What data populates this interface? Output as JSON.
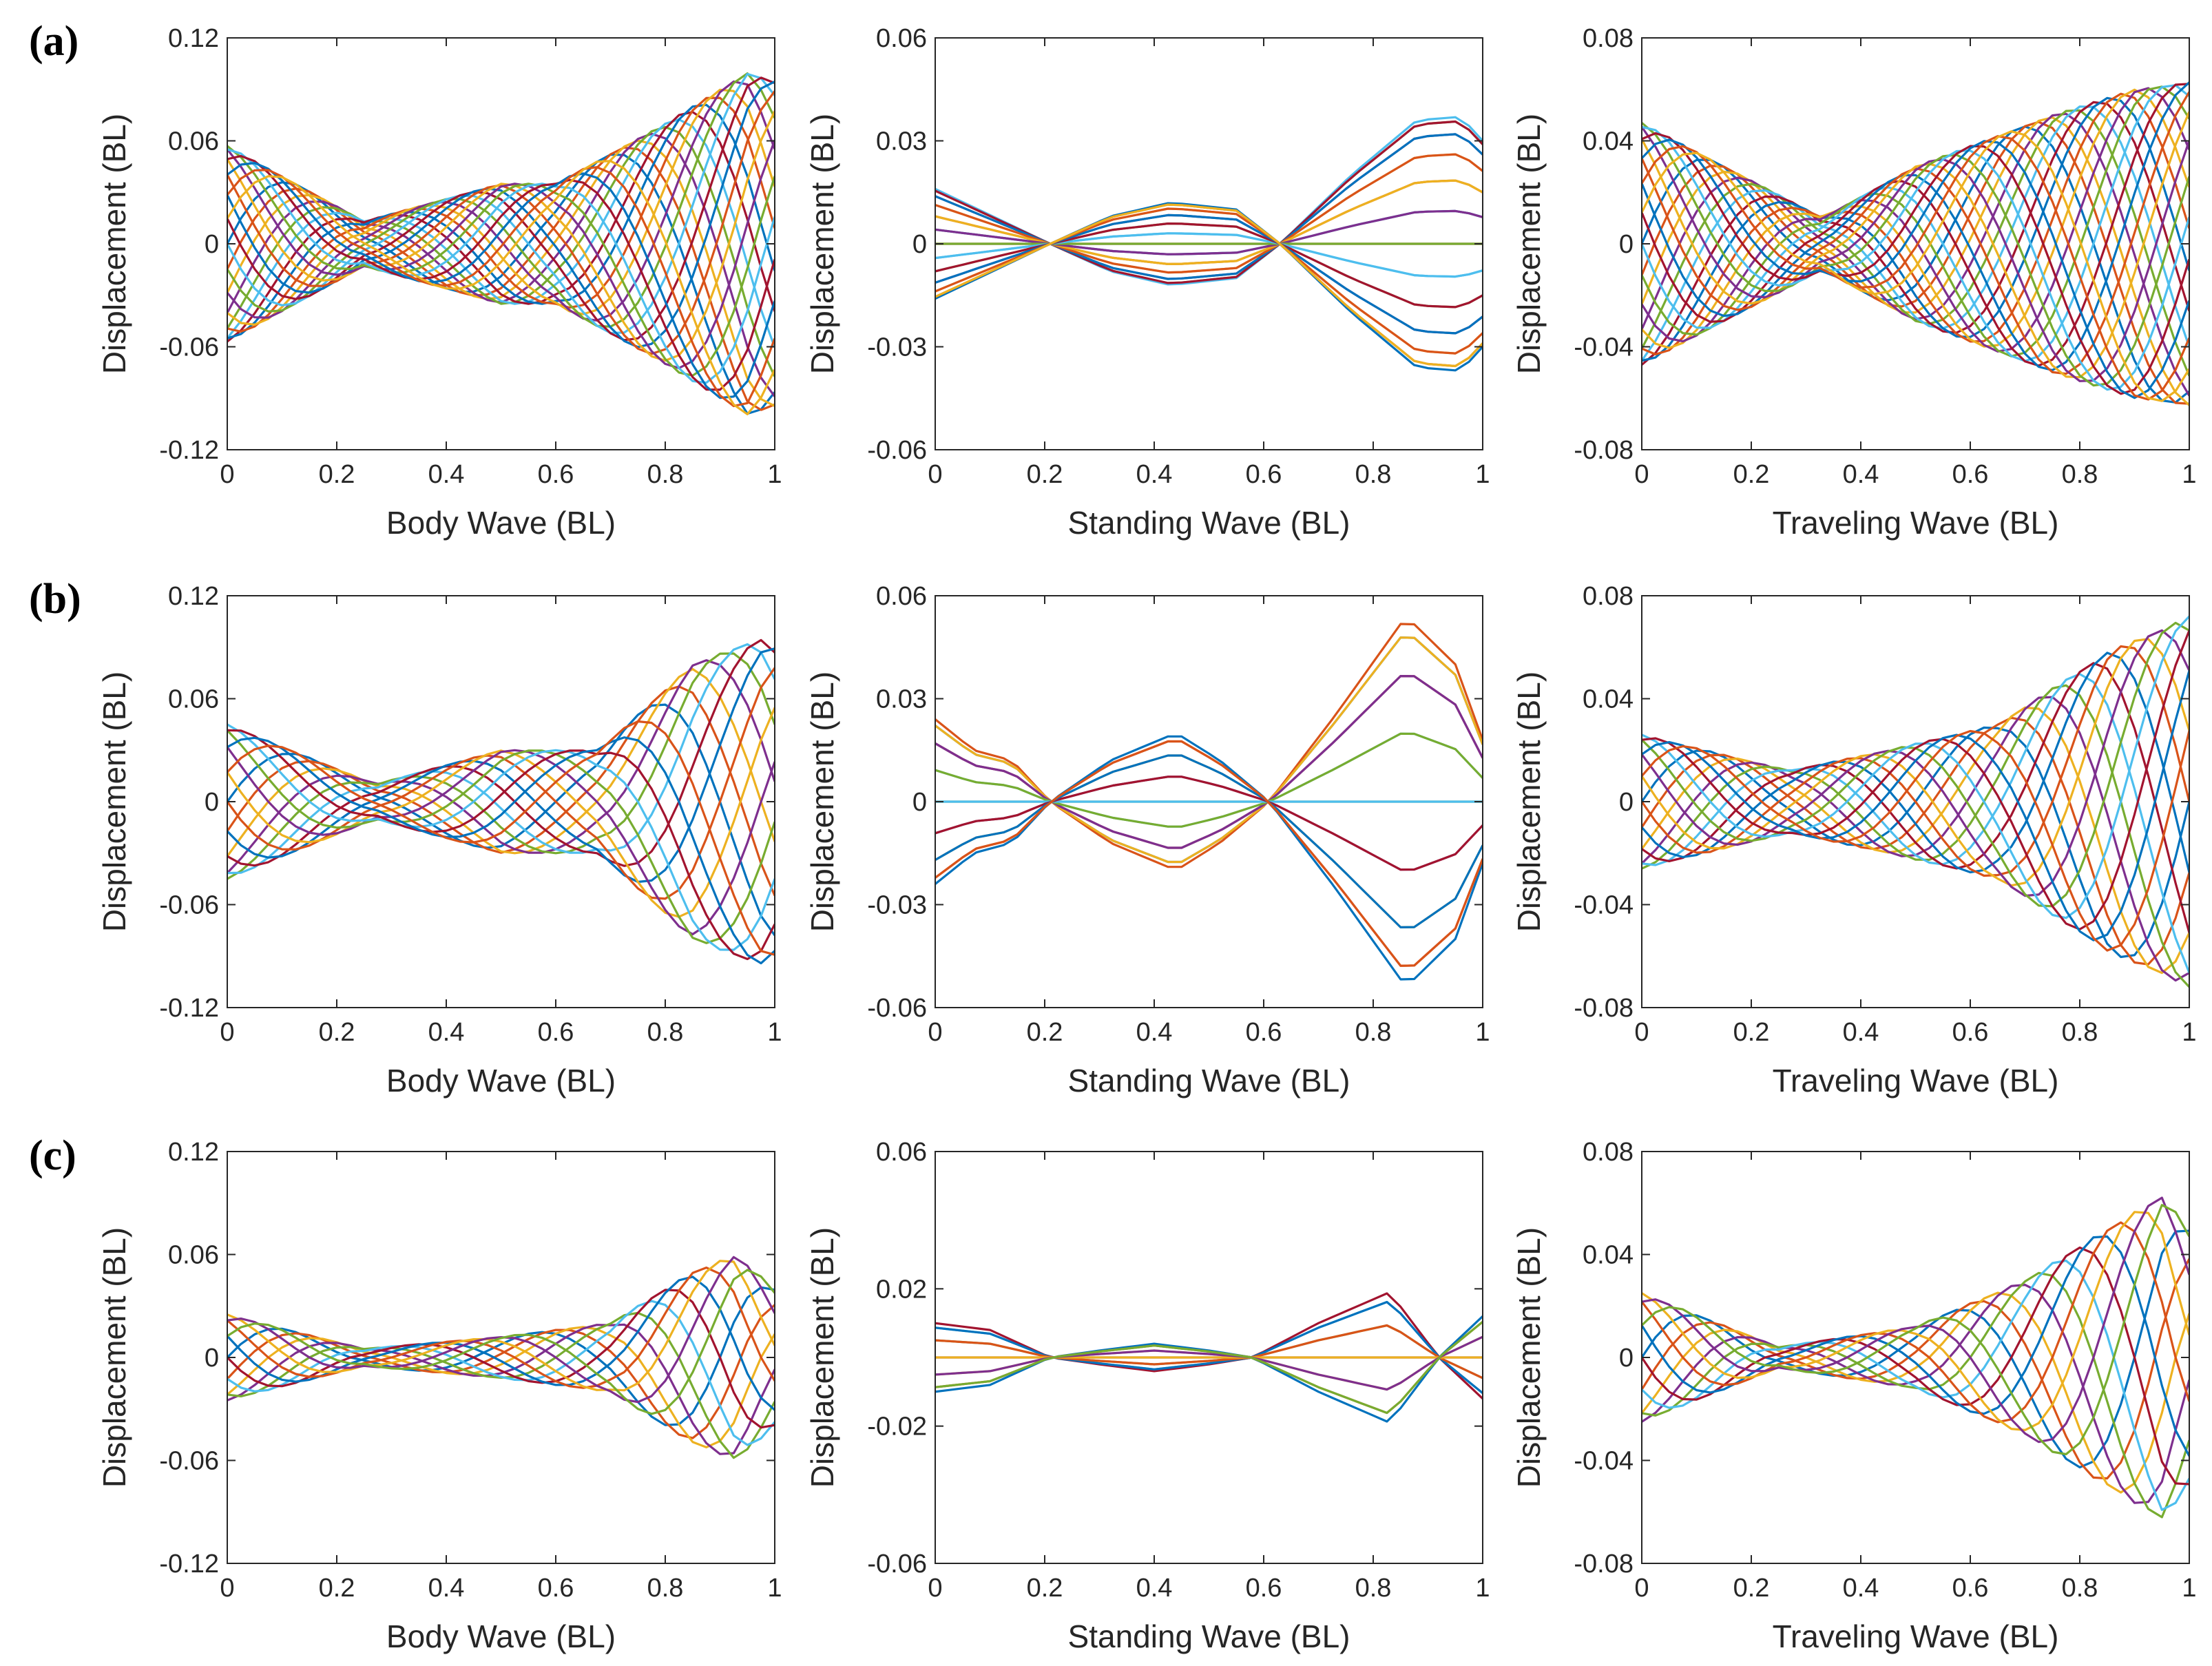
{
  "figure": {
    "rows": [
      {
        "label": "(a)",
        "panels": [
          {
            "xlabel": "Body Wave (BL)",
            "ylabel": "Displacement (BL)",
            "ylim": [
              -0.12,
              0.12
            ],
            "yticks": [
              "0.12",
              "0.06",
              "0",
              "-0.06",
              "-0.12"
            ]
          },
          {
            "xlabel": "Standing Wave (BL)",
            "ylabel": "Displacement (BL)",
            "ylim": [
              -0.06,
              0.06
            ],
            "yticks": [
              "0.06",
              "0.03",
              "0",
              "-0.03",
              "-0.06"
            ]
          },
          {
            "xlabel": "Traveling Wave (BL)",
            "ylabel": "Displacement (BL)",
            "ylim": [
              -0.08,
              0.08
            ],
            "yticks": [
              "0.08",
              "0.04",
              "0",
              "-0.04",
              "-0.08"
            ]
          }
        ]
      },
      {
        "label": "(b)",
        "panels": [
          {
            "xlabel": "Body Wave (BL)",
            "ylabel": "Displacement (BL)",
            "ylim": [
              -0.12,
              0.12
            ],
            "yticks": [
              "0.12",
              "0.06",
              "0",
              "-0.06",
              "-0.12"
            ]
          },
          {
            "xlabel": "Standing Wave (BL)",
            "ylabel": "Displacement (BL)",
            "ylim": [
              -0.06,
              0.06
            ],
            "yticks": [
              "0.06",
              "0.03",
              "0",
              "-0.03",
              "-0.06"
            ]
          },
          {
            "xlabel": "Traveling Wave (BL)",
            "ylabel": "Displacement (BL)",
            "ylim": [
              -0.08,
              0.08
            ],
            "yticks": [
              "0.08",
              "0.04",
              "0",
              "-0.04",
              "-0.08"
            ]
          }
        ]
      },
      {
        "label": "(c)",
        "panels": [
          {
            "xlabel": "Body Wave (BL)",
            "ylabel": "Displacement (BL)",
            "ylim": [
              -0.12,
              0.12
            ],
            "yticks": [
              "0.12",
              "0.06",
              "0",
              "-0.06",
              "-0.12"
            ]
          },
          {
            "xlabel": "Standing Wave (BL)",
            "ylabel": "Displacement (BL)",
            "ylim": [
              -0.06,
              0.06
            ],
            "yticks": [
              "0.06",
              "0.02",
              "-0.02",
              "-0.06"
            ]
          },
          {
            "xlabel": "Traveling Wave (BL)",
            "ylabel": "Displacement (BL)",
            "ylim": [
              -0.08,
              0.08
            ],
            "yticks": [
              "0.08",
              "0.04",
              "0",
              "-0.04",
              "-0.08"
            ]
          }
        ]
      }
    ],
    "xticks": [
      "0",
      "0.2",
      "0.4",
      "0.6",
      "0.8",
      "1"
    ],
    "palette": [
      "#0072BD",
      "#D95319",
      "#EDB120",
      "#7E2F8E",
      "#77AC30",
      "#4DBEEE",
      "#A2142F"
    ]
  },
  "chart_data": [
    {
      "id": "a-body",
      "type": "line",
      "xlim": [
        0,
        1
      ],
      "ylim": [
        -0.12,
        0.12
      ],
      "xlabel": "Body Wave (BL)",
      "ylabel": "Displacement (BL)",
      "generator": {
        "kind": "traveling",
        "n_curves": 24,
        "amplitude_x": [
          0,
          0.25,
          0.5,
          0.6,
          0.8,
          0.95,
          1.0
        ],
        "amplitude_y": [
          0.057,
          0.013,
          0.035,
          0.035,
          0.07,
          0.1,
          0.095
        ],
        "wavelength": 0.55
      }
    },
    {
      "id": "a-standing",
      "type": "line",
      "xlim": [
        0,
        1
      ],
      "ylim": [
        -0.06,
        0.06
      ],
      "xlabel": "Standing Wave (BL)",
      "ylabel": "Displacement (BL)",
      "generator": {
        "kind": "standing",
        "n_curves": 24,
        "shape_x": [
          0,
          0.21,
          0.32,
          0.43,
          0.55,
          0.63,
          0.76,
          0.88,
          0.96,
          1.0
        ],
        "shape_y": [
          -0.016,
          0,
          0.008,
          0.012,
          0.01,
          0,
          -0.02,
          -0.036,
          -0.037,
          -0.03
        ]
      }
    },
    {
      "id": "a-traveling",
      "type": "line",
      "xlim": [
        0,
        1
      ],
      "ylim": [
        -0.08,
        0.08
      ],
      "xlabel": "Traveling Wave (BL)",
      "ylabel": "Displacement (BL)",
      "generator": {
        "kind": "traveling",
        "n_curves": 24,
        "amplitude_x": [
          0,
          0.33,
          0.5,
          0.75,
          0.9,
          1.0
        ],
        "amplitude_y": [
          0.047,
          0.01,
          0.03,
          0.05,
          0.06,
          0.063
        ],
        "wavelength": 0.55
      }
    },
    {
      "id": "b-body",
      "type": "line",
      "xlim": [
        0,
        1
      ],
      "ylim": [
        -0.12,
        0.12
      ],
      "xlabel": "Body Wave (BL)",
      "ylabel": "Displacement (BL)",
      "generator": {
        "kind": "traveling",
        "n_curves": 16,
        "amplitude_x": [
          0,
          0.27,
          0.5,
          0.68,
          0.85,
          0.97,
          1.0
        ],
        "amplitude_y": [
          0.045,
          0.01,
          0.03,
          0.03,
          0.08,
          0.095,
          0.09
        ],
        "wavelength": 0.6
      }
    },
    {
      "id": "b-standing",
      "type": "line",
      "xlim": [
        0,
        1
      ],
      "ylim": [
        -0.06,
        0.06
      ],
      "xlabel": "Standing Wave (BL)",
      "ylabel": "Displacement (BL)",
      "generator": {
        "kind": "standing",
        "n_curves": 16,
        "shape_x": [
          0,
          0.07,
          0.14,
          0.21,
          0.32,
          0.44,
          0.52,
          0.61,
          0.73,
          0.86,
          0.95,
          1.0
        ],
        "shape_y": [
          -0.024,
          -0.015,
          -0.012,
          0,
          0.012,
          0.02,
          0.012,
          0,
          -0.025,
          -0.054,
          -0.04,
          -0.018
        ]
      }
    },
    {
      "id": "b-traveling",
      "type": "line",
      "xlim": [
        0,
        1
      ],
      "ylim": [
        -0.08,
        0.08
      ],
      "xlabel": "Traveling Wave (BL)",
      "ylabel": "Displacement (BL)",
      "generator": {
        "kind": "traveling",
        "n_curves": 16,
        "amplitude_x": [
          0,
          0.27,
          0.45,
          0.65,
          0.85,
          1.0
        ],
        "amplitude_y": [
          0.026,
          0.012,
          0.02,
          0.03,
          0.058,
          0.072
        ],
        "wavelength": 0.5
      }
    },
    {
      "id": "c-body",
      "type": "line",
      "xlim": [
        0,
        1
      ],
      "ylim": [
        -0.12,
        0.12
      ],
      "xlabel": "Body Wave (BL)",
      "ylabel": "Displacement (BL)",
      "generator": {
        "kind": "traveling",
        "n_curves": 12,
        "amplitude_x": [
          0,
          0.25,
          0.5,
          0.7,
          0.85,
          0.93,
          1.0
        ],
        "amplitude_y": [
          0.025,
          0.005,
          0.012,
          0.02,
          0.05,
          0.06,
          0.04
        ],
        "wavelength": 0.45
      }
    },
    {
      "id": "c-standing",
      "type": "line",
      "xlim": [
        0,
        1
      ],
      "ylim": [
        -0.06,
        0.06
      ],
      "xlabel": "Standing Wave (BL)",
      "ylabel": "Displacement (BL)",
      "generator": {
        "kind": "standing",
        "n_curves": 12,
        "shape_x": [
          0,
          0.1,
          0.21,
          0.3,
          0.4,
          0.5,
          0.58,
          0.7,
          0.83,
          0.92,
          1.0
        ],
        "shape_y": [
          -0.01,
          -0.008,
          0,
          0.002,
          0.004,
          0.002,
          0,
          -0.01,
          -0.019,
          0,
          0.012
        ]
      }
    },
    {
      "id": "c-traveling",
      "type": "line",
      "xlim": [
        0,
        1
      ],
      "ylim": [
        -0.08,
        0.08
      ],
      "xlabel": "Traveling Wave (BL)",
      "ylabel": "Displacement (BL)",
      "generator": {
        "kind": "traveling",
        "n_curves": 12,
        "amplitude_x": [
          0,
          0.25,
          0.5,
          0.7,
          0.85,
          0.95,
          1.0
        ],
        "amplitude_y": [
          0.025,
          0.004,
          0.012,
          0.03,
          0.05,
          0.063,
          0.05
        ],
        "wavelength": 0.45
      }
    }
  ]
}
